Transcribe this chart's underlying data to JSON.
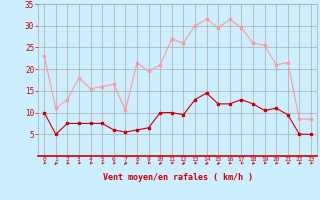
{
  "x": [
    0,
    1,
    2,
    3,
    4,
    5,
    6,
    7,
    8,
    9,
    10,
    11,
    12,
    13,
    14,
    15,
    16,
    17,
    18,
    19,
    20,
    21,
    22,
    23
  ],
  "wind_avg": [
    10,
    5,
    7.5,
    7.5,
    7.5,
    7.5,
    6,
    5.5,
    6,
    6.5,
    10,
    10,
    9.5,
    13,
    14.5,
    12,
    12,
    13,
    12,
    10.5,
    11,
    9.5,
    5,
    5
  ],
  "wind_gust": [
    23,
    11,
    13,
    18,
    15.5,
    16,
    16.5,
    10.5,
    21.5,
    19.5,
    21,
    27,
    26,
    30,
    31.5,
    29.5,
    31.5,
    29.5,
    26,
    25.5,
    21,
    21.5,
    8.5,
    8.5
  ],
  "bg_color": "#cceeff",
  "grid_color": "#aaaaaa",
  "avg_color": "#cc0000",
  "gust_color": "#ff9999",
  "xlabel": "Vent moyen/en rafales ( km/h )",
  "xlabel_color": "#cc0000",
  "tick_color": "#cc0000",
  "ylim": [
    0,
    35
  ],
  "yticks": [
    5,
    10,
    15,
    20,
    25,
    30,
    35
  ],
  "xlim": [
    -0.5,
    23.5
  ],
  "xticks": [
    0,
    1,
    2,
    3,
    4,
    5,
    6,
    7,
    8,
    9,
    10,
    11,
    12,
    13,
    14,
    15,
    16,
    17,
    18,
    19,
    20,
    21,
    22,
    23
  ]
}
